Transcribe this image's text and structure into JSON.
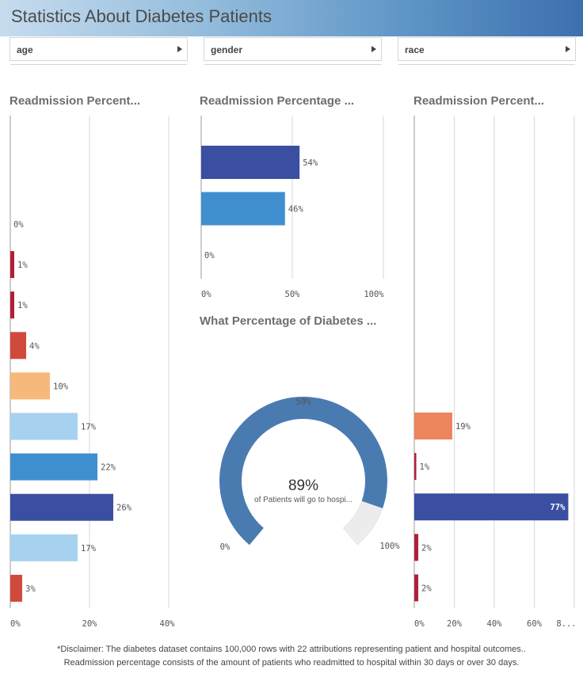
{
  "header": {
    "title": "Statistics About Diabetes Patients"
  },
  "filters": [
    {
      "label": "age"
    },
    {
      "label": "gender"
    },
    {
      "label": "race"
    }
  ],
  "chart_data": [
    {
      "type": "bar",
      "orientation": "horizontal",
      "title": "Readmission Percent...",
      "values": [
        0,
        1,
        1,
        4,
        10,
        17,
        22,
        26,
        17,
        3
      ],
      "labels": [
        "0%",
        "1%",
        "1%",
        "4%",
        "10%",
        "17%",
        "22%",
        "26%",
        "17%",
        "3%"
      ],
      "colors": [
        "#d04a3c",
        "#b0203a",
        "#b0203a",
        "#d04a3c",
        "#f7b97b",
        "#a6d2f0",
        "#3f8fd0",
        "#3a4fa1",
        "#a6d2f0",
        "#d04a3c"
      ],
      "xlim": [
        0,
        40
      ],
      "xticks": [
        "0%",
        "20%",
        "40%"
      ],
      "grid": true
    },
    {
      "type": "bar",
      "orientation": "horizontal",
      "title": "Readmission Percentage ...",
      "values": [
        54,
        46,
        0
      ],
      "labels": [
        "54%",
        "46%",
        "0%"
      ],
      "colors": [
        "#3a4fa1",
        "#3f8fd0",
        "#a6d2f0"
      ],
      "xlim": [
        0,
        100
      ],
      "xticks": [
        "0%",
        "50%",
        "100%"
      ],
      "grid": true
    },
    {
      "type": "gauge",
      "title": "What Percentage of Diabetes ...",
      "value": 89,
      "value_label": "89%",
      "caption": "of Patients will go to hospi...",
      "range": [
        0,
        100
      ],
      "min_label": "0%",
      "mid_label": "50%",
      "max_label": "100%",
      "colors": {
        "fill": "#4a7bb0",
        "track": "#ececec"
      }
    },
    {
      "type": "bar",
      "orientation": "horizontal",
      "title": "Readmission Percent...",
      "values": [
        19,
        1,
        77,
        2,
        2
      ],
      "labels": [
        "19%",
        "1%",
        "77%",
        "2%",
        "2%"
      ],
      "colors": [
        "#ec845c",
        "#b0203a",
        "#3a4fa1",
        "#b0203a",
        "#b0203a"
      ],
      "xlim": [
        0,
        80
      ],
      "xticks": [
        "0%",
        "20%",
        "40%",
        "60%",
        "8..."
      ],
      "grid": true
    }
  ],
  "footer": {
    "line1": "*Disclaimer: The diabetes dataset contains 100,000 rows with 22 attributions representing patient and hospital outcomes..",
    "line2": "Readmission percentage consists of the amount of patients who readmitted to hospital within 30 days or over 30 days."
  }
}
